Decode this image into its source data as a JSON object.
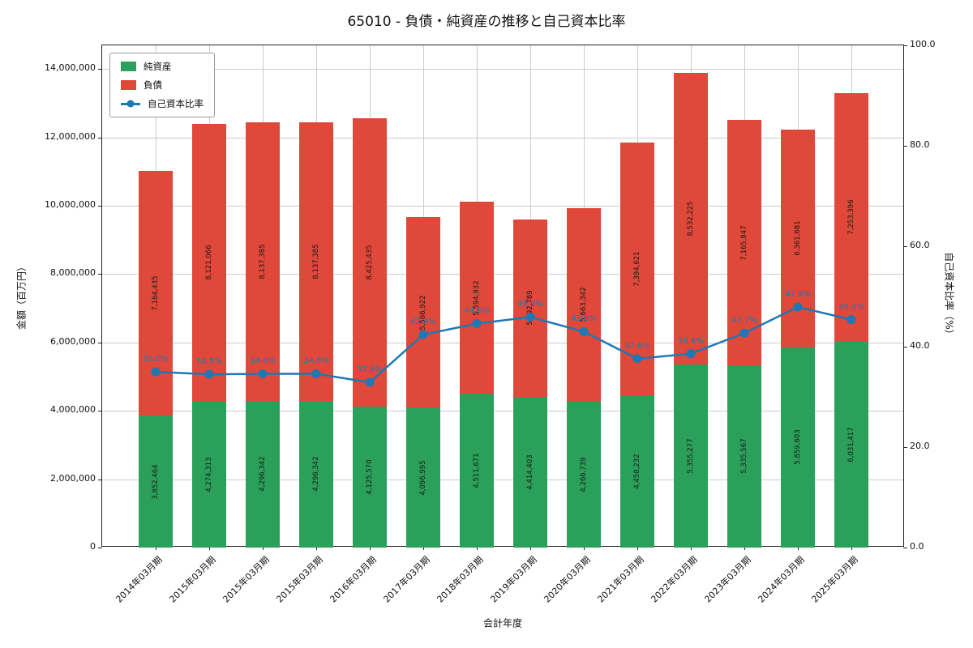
{
  "title": "65010 - 負債・純資産の推移と自己資本比率",
  "legend": {
    "equity": "純資産",
    "debt": "負債",
    "ratio": "自己資本比率"
  },
  "axes": {
    "left_label": "金額（百万円）",
    "right_label": "自己資本比率（%）",
    "x_label": "会計年度",
    "left_ticks": [
      {
        "value": 0,
        "label": "0"
      },
      {
        "value": 2000000,
        "label": "2,000,000"
      },
      {
        "value": 4000000,
        "label": "4,000,000"
      },
      {
        "value": 6000000,
        "label": "6,000,000"
      },
      {
        "value": 8000000,
        "label": "8,000,000"
      },
      {
        "value": 10000000,
        "label": "10,000,000"
      },
      {
        "value": 12000000,
        "label": "12,000,000"
      },
      {
        "value": 14000000,
        "label": "14,000,000"
      }
    ],
    "right_ticks": [
      {
        "value": 0,
        "label": "0.0"
      },
      {
        "value": 20,
        "label": "20.0"
      },
      {
        "value": 40,
        "label": "40.0"
      },
      {
        "value": 60,
        "label": "60.0"
      },
      {
        "value": 80,
        "label": "80.0"
      },
      {
        "value": 100,
        "label": "100.0"
      }
    ]
  },
  "colors": {
    "equity": "#2aa05a",
    "debt": "#e0483a",
    "ratio_line": "#1f77b4",
    "grid": "#cccccc"
  },
  "chart_data": {
    "type": "bar",
    "stacked": true,
    "title": "65010 - 負債・純資産の推移と自己資本比率",
    "xlabel": "会計年度",
    "ylabel_left": "金額（百万円）",
    "ylabel_right": "自己資本比率（%）",
    "ylim_left": [
      0,
      14690000
    ],
    "ylim_right": [
      0,
      100
    ],
    "grid": true,
    "legend_position": "upper left",
    "categories": [
      "2014年03月期",
      "2015年03月期",
      "2015年03月期",
      "2015年03月期",
      "2016年03月期",
      "2017年03月期",
      "2018年03月期",
      "2019年03月期",
      "2020年03月期",
      "2021年03月期",
      "2022年03月期",
      "2023年03月期",
      "2024年03月期",
      "2025年03月期"
    ],
    "series": [
      {
        "name": "純資産",
        "values": [
          3852464,
          4274313,
          4296342,
          4296342,
          4125570,
          4096995,
          4511671,
          4414403,
          4266739,
          4458232,
          5355277,
          5335567,
          5859603,
          6031417
        ]
      },
      {
        "name": "負債",
        "values": [
          7164435,
          8121066,
          8137385,
          8137385,
          8425435,
          5566922,
          5594932,
          5192789,
          5663342,
          7394621,
          8532225,
          7165847,
          6361681,
          7253396
        ]
      }
    ],
    "line_series": {
      "name": "自己資本比率",
      "unit": "%",
      "values": [
        35.0,
        34.5,
        34.6,
        34.6,
        32.9,
        42.4,
        44.6,
        45.9,
        43.0,
        37.6,
        38.6,
        42.7,
        47.9,
        45.4
      ]
    }
  }
}
